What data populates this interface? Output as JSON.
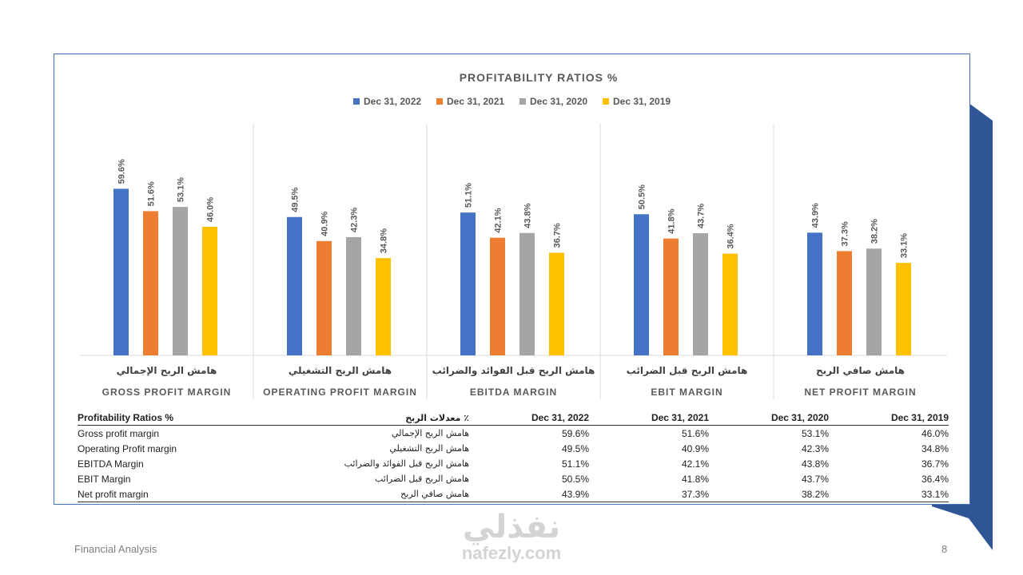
{
  "colors": {
    "series": [
      "#4472c4",
      "#ed7d31",
      "#a5a5a5",
      "#ffc000"
    ],
    "frame": "#4472c4",
    "deco_dark": "#2f5597"
  },
  "chart_data": {
    "type": "bar",
    "title": "PROFITABILITY RATIOS %",
    "legend_position": "top",
    "ylim": [
      0,
      65
    ],
    "categories": [
      "GROSS PROFIT MARGIN",
      "OPERATING PROFIT MARGIN",
      "EBITDA MARGIN",
      "EBIT MARGIN",
      "NET PROFIT MARGIN"
    ],
    "categories_ar": [
      "هامش الربح الإجمالي",
      "هامش الربح التشغيلي",
      "هامش الربح قبل الفوائد والضرائب",
      "هامش الربح قبل الضرائب",
      "هامش صافي الربح"
    ],
    "series": [
      {
        "name": "Dec 31, 2022",
        "values": [
          59.6,
          49.5,
          51.1,
          50.5,
          43.9
        ],
        "labels": [
          "59.6%",
          "49.5%",
          "51.1%",
          "50.5%",
          "43.9%"
        ]
      },
      {
        "name": "Dec 31, 2021",
        "values": [
          51.6,
          40.9,
          42.1,
          41.8,
          37.3
        ],
        "labels": [
          "51.6%",
          "40.9%",
          "42.1%",
          "41.8%",
          "37.3%"
        ]
      },
      {
        "name": "Dec 31, 2020",
        "values": [
          53.1,
          42.3,
          43.8,
          43.7,
          38.2
        ],
        "labels": [
          "53.1%",
          "42.3%",
          "43.8%",
          "43.7%",
          "38.2%"
        ]
      },
      {
        "name": "Dec 31, 2019",
        "values": [
          46.0,
          34.8,
          36.7,
          36.4,
          33.1
        ],
        "labels": [
          "46.0%",
          "34.8%",
          "36.7%",
          "36.4%",
          "33.1%"
        ]
      }
    ]
  },
  "table": {
    "headers": [
      "Profitability Ratios %",
      "معدلات الربح ٪",
      "Dec 31, 2022",
      "Dec 31, 2021",
      "Dec 31, 2020",
      "Dec 31, 2019"
    ],
    "rows": [
      {
        "en": "Gross profit margin",
        "ar": "هامش الربح الإجمالي",
        "values": [
          "59.6%",
          "51.6%",
          "53.1%",
          "46.0%"
        ]
      },
      {
        "en": "Operating Profit margin",
        "ar": "هامش الربح التشغيلي",
        "values": [
          "49.5%",
          "40.9%",
          "42.3%",
          "34.8%"
        ]
      },
      {
        "en": "EBITDA Margin",
        "ar": "هامش الربح قبل الفوائد والضرائب",
        "values": [
          "51.1%",
          "42.1%",
          "43.8%",
          "36.7%"
        ]
      },
      {
        "en": "EBIT Margin",
        "ar": "هامش الربح قبل الضرائب",
        "values": [
          "50.5%",
          "41.8%",
          "43.7%",
          "36.4%"
        ]
      },
      {
        "en": "Net profit margin",
        "ar": "هامش صافي الربح",
        "values": [
          "43.9%",
          "37.3%",
          "38.2%",
          "33.1%"
        ]
      }
    ]
  },
  "footer": {
    "left": "Financial Analysis",
    "page_number": "8"
  },
  "watermark": {
    "arabic": "نفذلي",
    "latin": "nafezly.com"
  }
}
